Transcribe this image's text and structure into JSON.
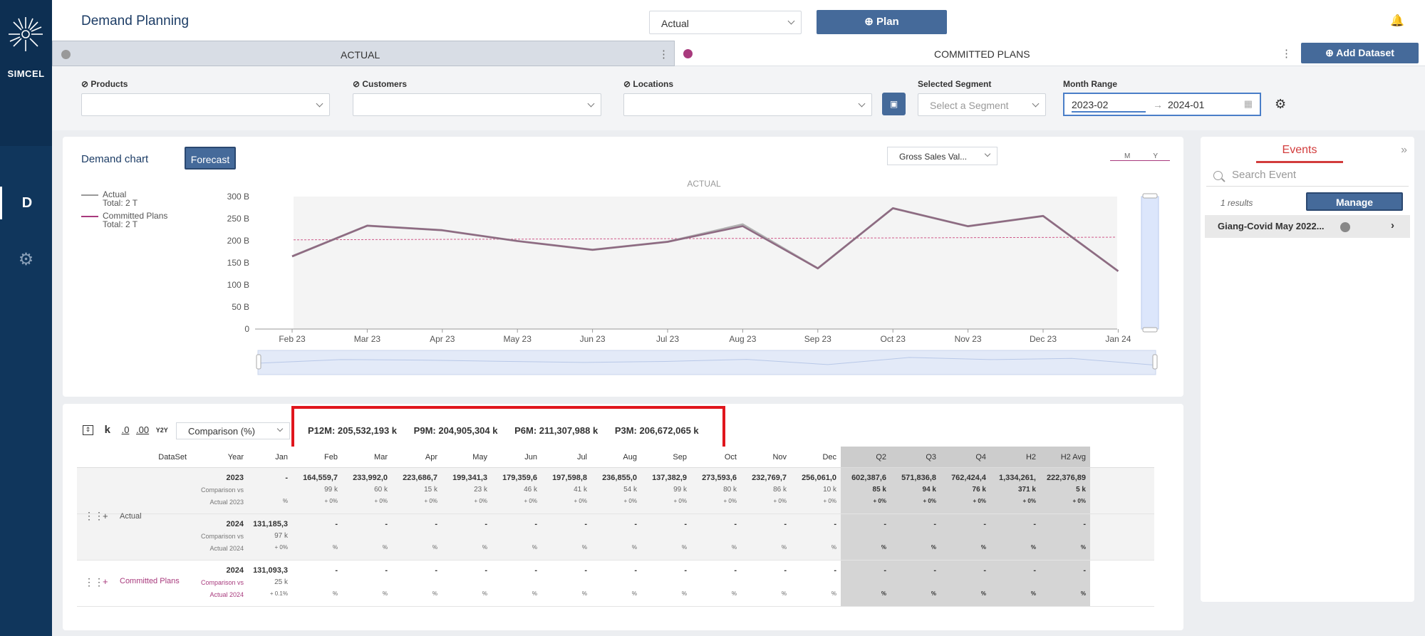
{
  "app": {
    "brand": "SIMCEL",
    "title": "Demand Planning",
    "nav_d": "D"
  },
  "header": {
    "dataset_select": "Actual",
    "plan_button": "Plan"
  },
  "tabs": {
    "actual": "ACTUAL",
    "committed": "COMMITTED PLANS",
    "add_dataset": "Add Dataset"
  },
  "filters": {
    "products": "Products",
    "customers": "Customers",
    "locations": "Locations",
    "segment_label": "Selected Segment",
    "segment_placeholder": "Select a Segment",
    "month_range_label": "Month Range",
    "start": "2023-02",
    "end": "2024-01"
  },
  "chart_panel": {
    "title": "Demand chart",
    "forecast_button": "Forecast",
    "measure_select": "Gross Sales Val...",
    "toggle_m": "M",
    "toggle_y": "Y",
    "legend": [
      {
        "name": "Actual",
        "total": "Total: 2 T",
        "color": "#999999"
      },
      {
        "name": "Committed Plans",
        "total": "Total: 2 T",
        "color": "#a83a7d"
      }
    ]
  },
  "chart_data": {
    "type": "line",
    "title": "ACTUAL",
    "categories": [
      "Feb 23",
      "Mar 23",
      "Apr 23",
      "May 23",
      "Jun 23",
      "Jul 23",
      "Aug 23",
      "Sep 23",
      "Oct 23",
      "Nov 23",
      "Dec 23",
      "Jan 24"
    ],
    "y_ticks": [
      "0",
      "50 B",
      "100 B",
      "150 B",
      "200 B",
      "250 B",
      "300 B"
    ],
    "ylim": [
      0,
      300
    ],
    "series": [
      {
        "name": "Actual",
        "color": "#999999",
        "values": [
          164.6,
          234.0,
          223.7,
          199.3,
          179.4,
          197.6,
          236.9,
          137.4,
          273.6,
          232.8,
          256.1,
          131.2
        ]
      },
      {
        "name": "Committed Plans",
        "color": "#a83a7d",
        "values": [
          164.6,
          234.0,
          223.7,
          199.3,
          179.4,
          197.6,
          233.0,
          137.4,
          273.6,
          232.8,
          256.1,
          131.1
        ]
      }
    ],
    "trend": [
      202,
      208
    ]
  },
  "events": {
    "title": "Events",
    "search_placeholder": "Search Event",
    "results": "1 results",
    "manage": "Manage",
    "item": "Giang-Covid May 2022..."
  },
  "table": {
    "tools": [
      "k",
      ".0",
      ".00",
      "Y2Y"
    ],
    "comparison_select": "Comparison (%)",
    "kpis": [
      "P12M: 205,532,193 k",
      "P9M: 204,905,304 k",
      "P6M: 211,307,988 k",
      "P3M: 206,672,065 k"
    ],
    "headers": [
      "DataSet",
      "Year",
      "Jan",
      "Feb",
      "Mar",
      "Apr",
      "May",
      "Jun",
      "Jul",
      "Aug",
      "Sep",
      "Oct",
      "Nov",
      "Dec",
      "Q2",
      "Q3",
      "Q4",
      "H2",
      "H2 Avg"
    ],
    "actual_label": "Actual",
    "committed_label": "Committed Plans",
    "rows": [
      {
        "year": "2023",
        "sub1": "Comparison vs",
        "sub2": "Actual 2023",
        "cells": [
          [
            "-",
            "",
            "%"
          ],
          [
            "164,559,7",
            "99 k",
            "+ 0%"
          ],
          [
            "233,992,0",
            "60 k",
            "+ 0%"
          ],
          [
            "223,686,7",
            "15 k",
            "+ 0%"
          ],
          [
            "199,341,3",
            "23 k",
            "+ 0%"
          ],
          [
            "179,359,6",
            "46 k",
            "+ 0%"
          ],
          [
            "197,598,8",
            "41 k",
            "+ 0%"
          ],
          [
            "236,855,0",
            "54 k",
            "+ 0%"
          ],
          [
            "137,382,9",
            "99 k",
            "+ 0%"
          ],
          [
            "273,593,6",
            "80 k",
            "+ 0%"
          ],
          [
            "232,769,7",
            "86 k",
            "+ 0%"
          ],
          [
            "256,061,0",
            "10 k",
            "+ 0%"
          ],
          [
            "602,387,6",
            "85 k",
            "+ 0%"
          ],
          [
            "571,836,8",
            "94 k",
            "+ 0%"
          ],
          [
            "762,424,4",
            "76 k",
            "+ 0%"
          ],
          [
            "1,334,261,",
            "371 k",
            "+ 0%"
          ],
          [
            "222,376,89",
            "5 k",
            "+ 0%"
          ]
        ]
      },
      {
        "year": "2024",
        "sub1": "Comparison vs",
        "sub2": "Actual 2024",
        "cells": [
          [
            "131,185,3",
            "97 k",
            "+ 0%"
          ],
          [
            "-",
            "",
            "%"
          ],
          [
            "-",
            "",
            "%"
          ],
          [
            "-",
            "",
            "%"
          ],
          [
            "-",
            "",
            "%"
          ],
          [
            "-",
            "",
            "%"
          ],
          [
            "-",
            "",
            "%"
          ],
          [
            "-",
            "",
            "%"
          ],
          [
            "-",
            "",
            "%"
          ],
          [
            "-",
            "",
            "%"
          ],
          [
            "-",
            "",
            "%"
          ],
          [
            "-",
            "",
            "%"
          ],
          [
            "-",
            "",
            "%"
          ],
          [
            "-",
            "",
            "%"
          ],
          [
            "-",
            "",
            "%"
          ],
          [
            "-",
            "",
            "%"
          ],
          [
            "-",
            "",
            "%"
          ]
        ]
      },
      {
        "year": "2024",
        "sub1": "Comparison vs",
        "sub2": "Actual 2024",
        "cells": [
          [
            "131,093,3",
            "25 k",
            "+ 0.1%"
          ],
          [
            "-",
            "",
            "%"
          ],
          [
            "-",
            "",
            "%"
          ],
          [
            "-",
            "",
            "%"
          ],
          [
            "-",
            "",
            "%"
          ],
          [
            "-",
            "",
            "%"
          ],
          [
            "-",
            "",
            "%"
          ],
          [
            "-",
            "",
            "%"
          ],
          [
            "-",
            "",
            "%"
          ],
          [
            "-",
            "",
            "%"
          ],
          [
            "-",
            "",
            "%"
          ],
          [
            "-",
            "",
            "%"
          ],
          [
            "-",
            "",
            "%"
          ],
          [
            "-",
            "",
            "%"
          ],
          [
            "-",
            "",
            "%"
          ],
          [
            "-",
            "",
            "%"
          ],
          [
            "-",
            "",
            "%"
          ]
        ]
      }
    ]
  }
}
